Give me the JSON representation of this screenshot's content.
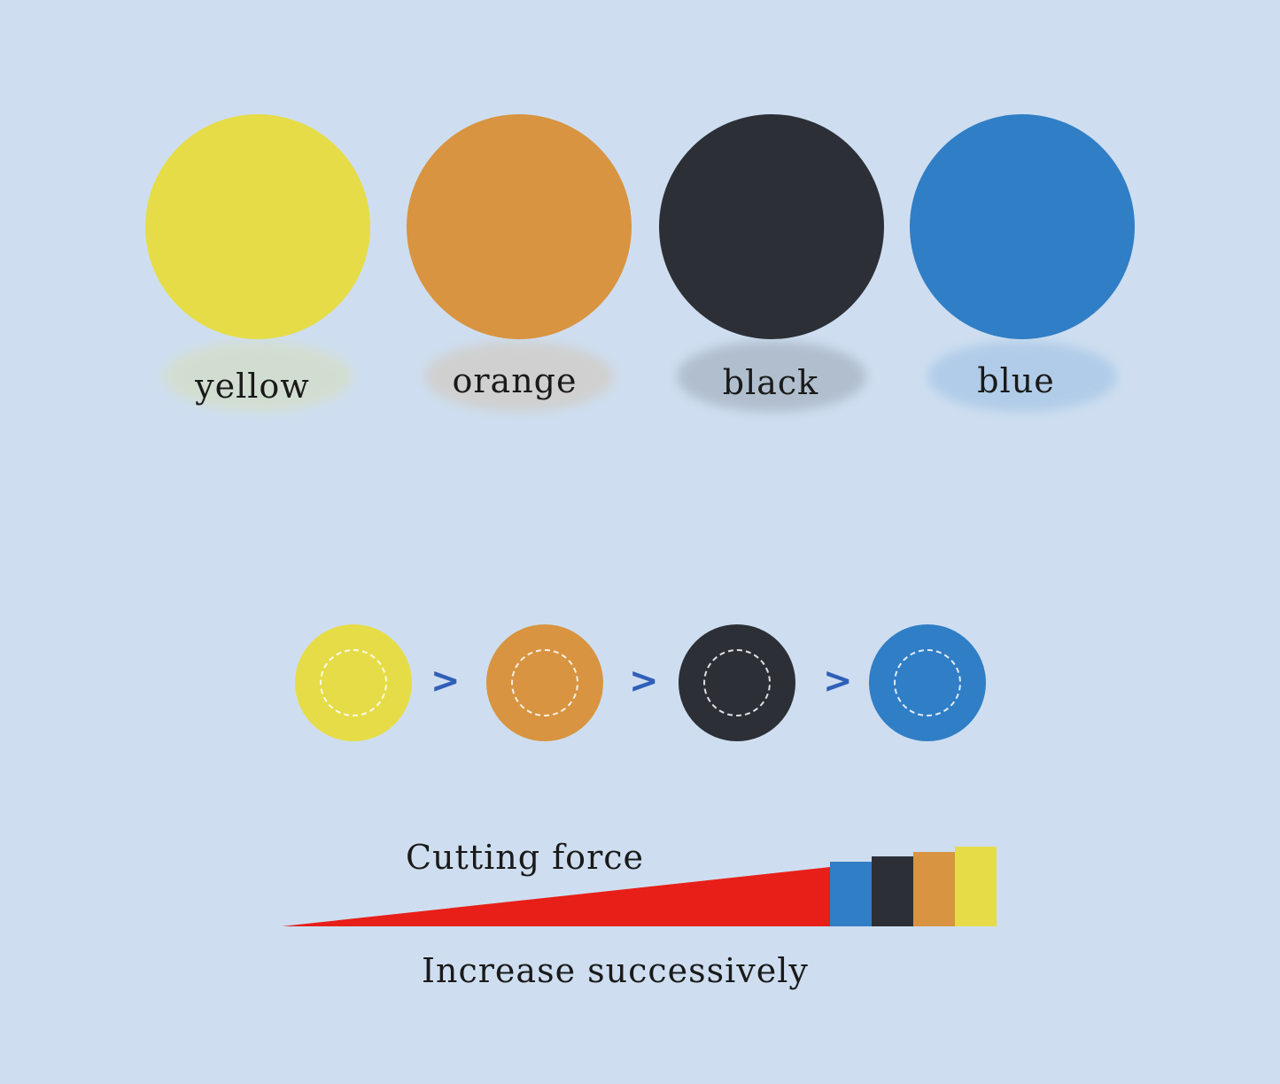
{
  "pads": [
    {
      "label": "yellow",
      "color": "#e6dc48"
    },
    {
      "label": "orange",
      "color": "#d89440"
    },
    {
      "label": "black",
      "color": "#2c3036"
    },
    {
      "label": "blue",
      "color": "#307ec6"
    }
  ],
  "comparison_symbol": ">",
  "wedge": {
    "color": "#e81f18",
    "title": "Cutting force",
    "caption": "Increase successively",
    "bar_order": [
      "blue",
      "black",
      "orange",
      "yellow"
    ]
  }
}
